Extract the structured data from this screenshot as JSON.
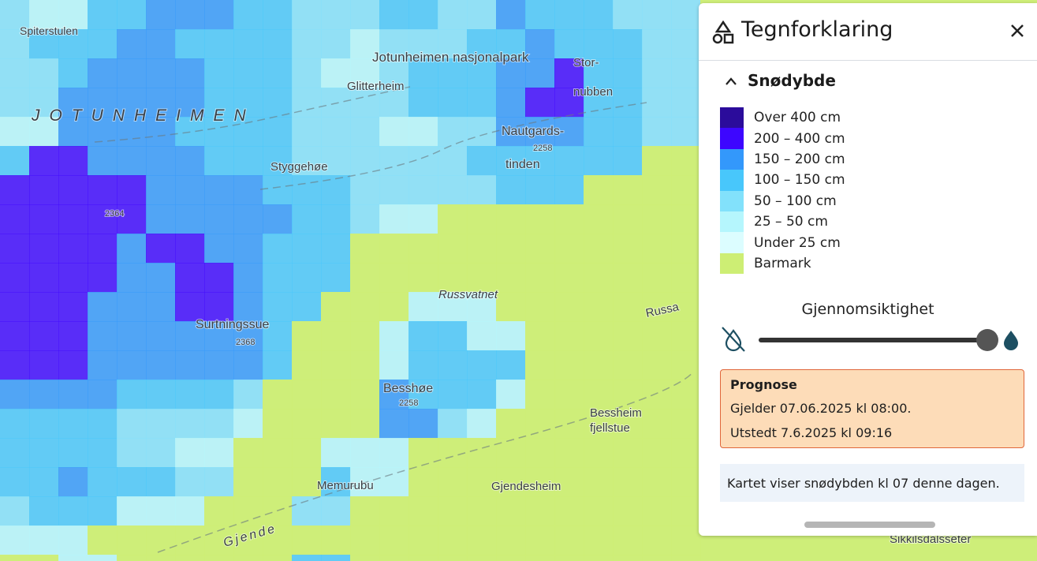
{
  "map": {
    "labels": [
      "Spiterstulen",
      "JOTUNHEIMEN",
      "Jotunheimen nasjonalpark",
      "Glitterheim",
      "Stor-",
      "nubben",
      "Nautgards-",
      "2258",
      "tinden",
      "Styggehøe",
      "2364",
      "Surtningssue",
      "2368",
      "Russvatnet",
      "Russa",
      "Besshøe",
      "2258",
      "Bessheim",
      "fjellstue",
      "Memurubu",
      "Gjendesheim",
      "Gjende",
      "Sikkilsdalsseter"
    ]
  },
  "legend": {
    "title": "Tegnforklaring",
    "section": "Snødybde",
    "items": [
      {
        "label": "Over 400 cm",
        "color": "#2b0c9b"
      },
      {
        "label": "200 – 400 cm",
        "color": "#3d06ff"
      },
      {
        "label": "150 – 200 cm",
        "color": "#3398fb"
      },
      {
        "label": "100 – 150 cm",
        "color": "#48c7fb"
      },
      {
        "label": "50 – 100 cm",
        "color": "#82e1fb"
      },
      {
        "label": "25 – 50 cm",
        "color": "#b5f6fd"
      },
      {
        "label": "Under 25 cm",
        "color": "#dcfdff"
      },
      {
        "label": "Barmark",
        "color": "#cdee74"
      }
    ],
    "opacity_label": "Gjennomsiktighet"
  },
  "forecast": {
    "title": "Prognose",
    "valid": "Gjelder 07.06.2025 kl 08:00.",
    "issued": "Utstedt 7.6.2025 kl 09:16"
  },
  "note": "Kartet viser snødybden kl 07 denne dagen."
}
